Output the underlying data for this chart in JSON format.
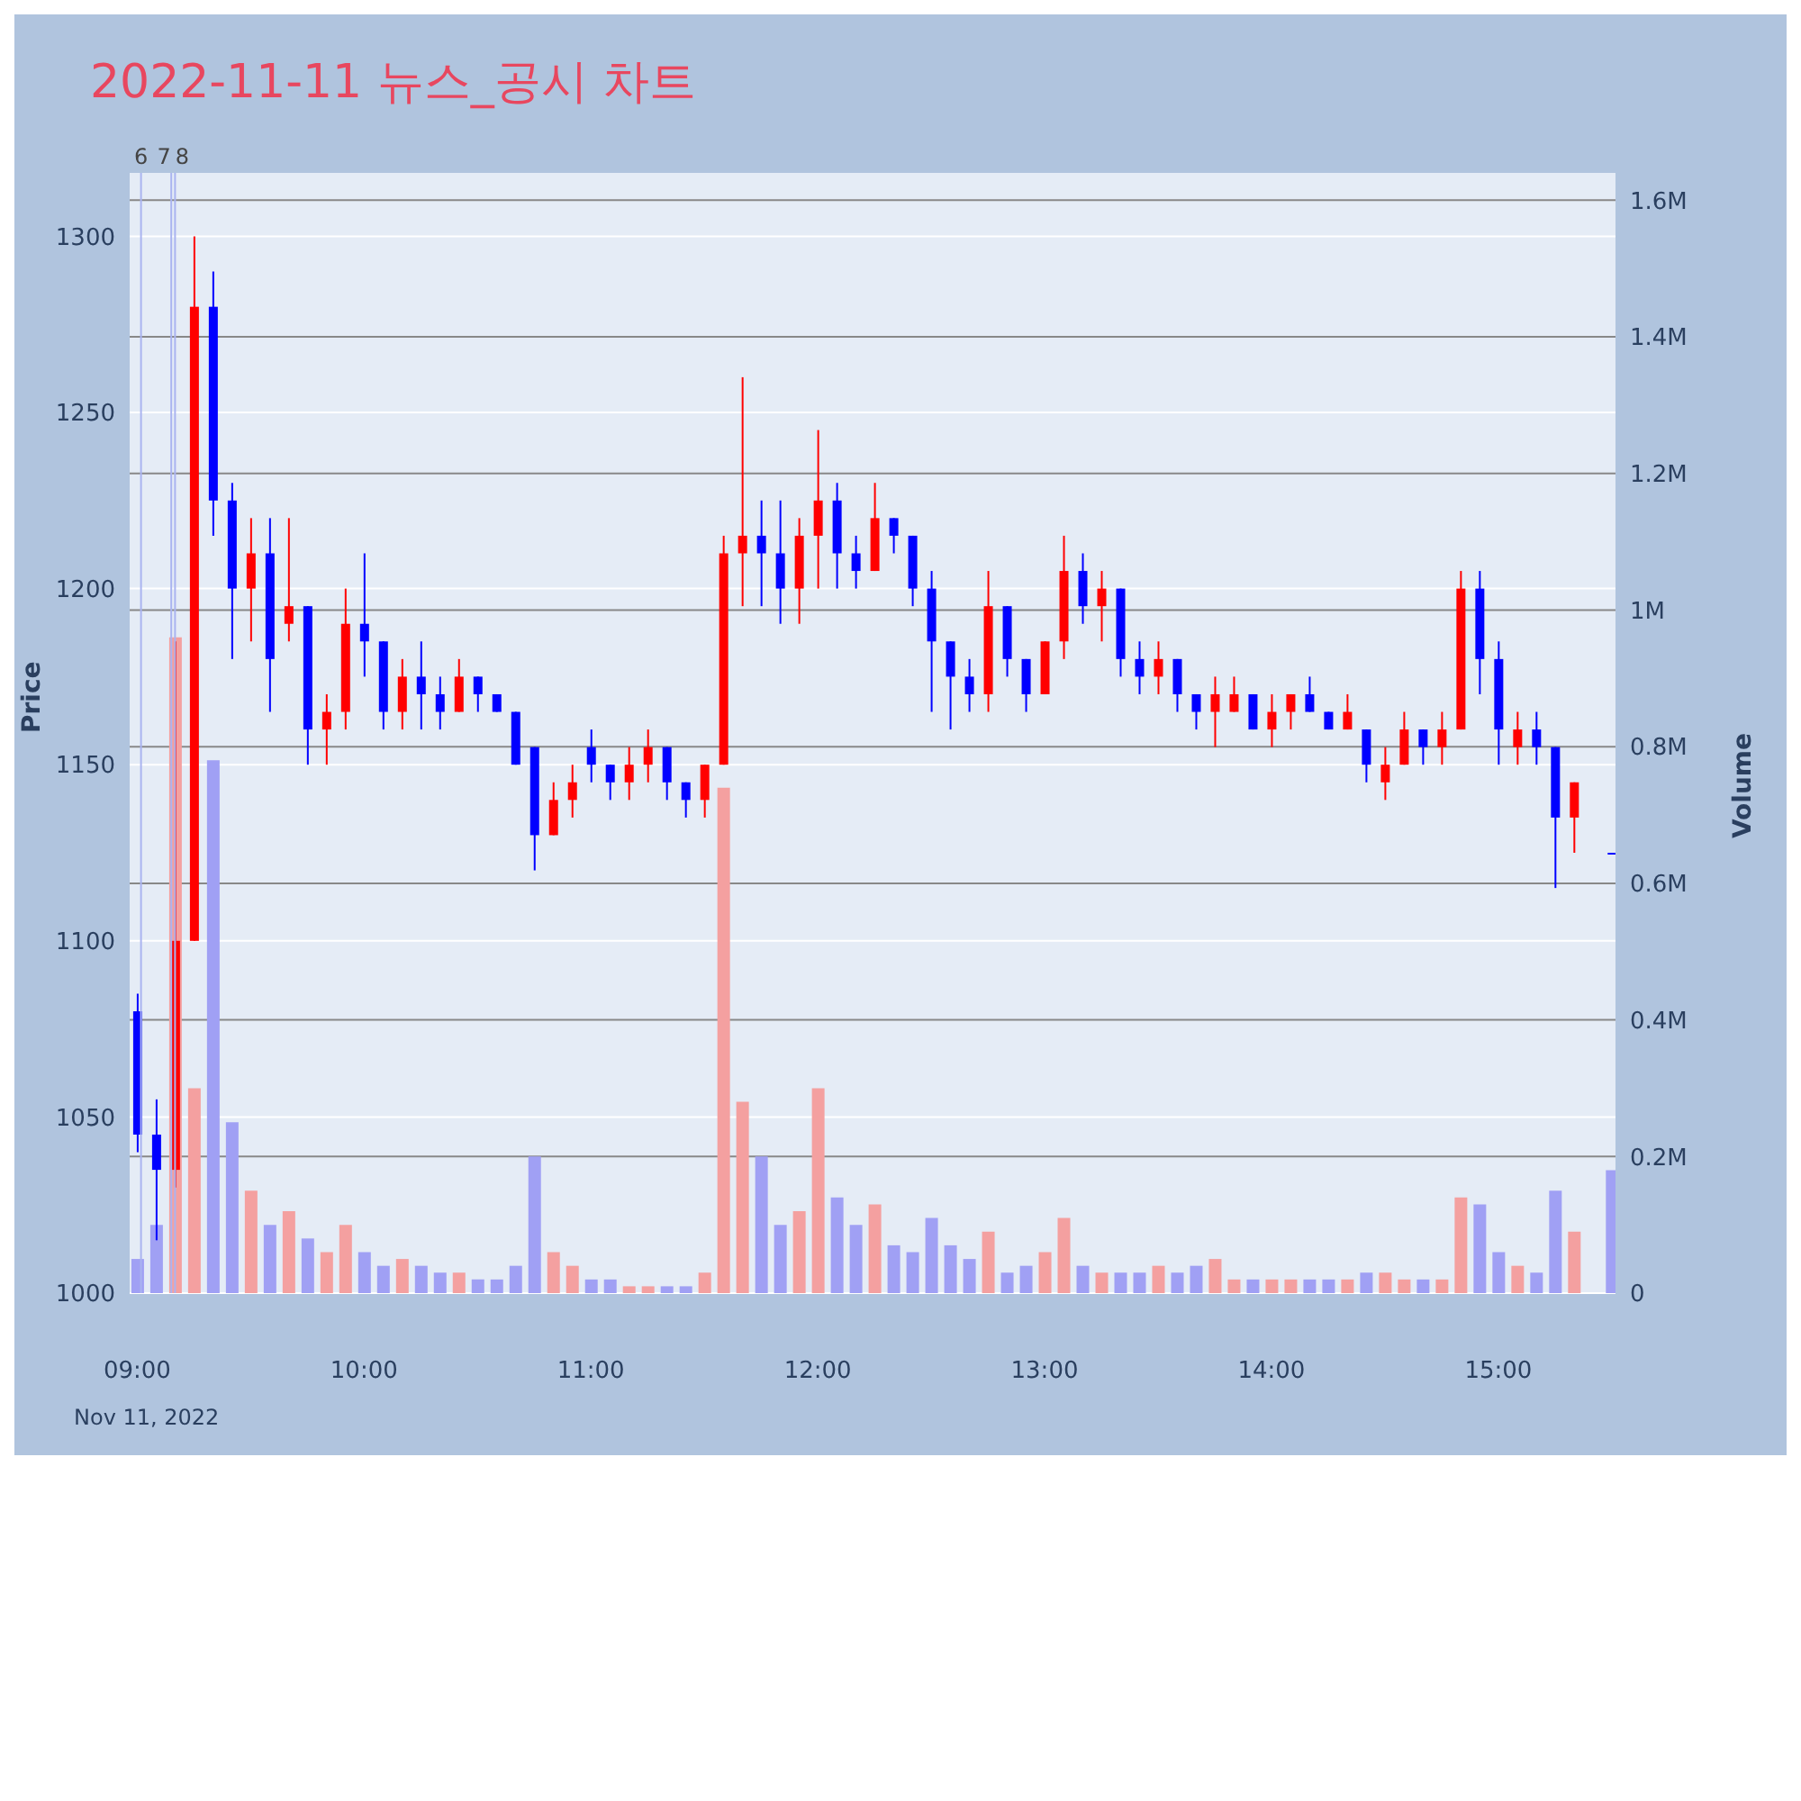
{
  "chart_data": {
    "type": "candlestick",
    "title": "2022-11-11 뉴스_공시 차트",
    "ylabel": "Price",
    "y2label": "Volume",
    "annotations": [
      "Nov 11, 2022"
    ],
    "x": [
      "2022-11-11T09:00",
      "2022-11-11T09:05",
      "2022-11-11T09:10",
      "2022-11-11T09:15",
      "2022-11-11T09:20",
      "2022-11-11T09:25",
      "2022-11-11T09:30",
      "2022-11-11T09:35",
      "2022-11-11T09:40",
      "2022-11-11T09:45",
      "2022-11-11T09:50",
      "2022-11-11T09:55",
      "2022-11-11T10:00",
      "2022-11-11T10:05",
      "2022-11-11T10:10",
      "2022-11-11T10:15",
      "2022-11-11T10:20",
      "2022-11-11T10:25",
      "2022-11-11T10:30",
      "2022-11-11T10:35",
      "2022-11-11T10:40",
      "2022-11-11T10:45",
      "2022-11-11T10:50",
      "2022-11-11T10:55",
      "2022-11-11T11:00",
      "2022-11-11T11:05",
      "2022-11-11T11:10",
      "2022-11-11T11:15",
      "2022-11-11T11:20",
      "2022-11-11T11:25",
      "2022-11-11T11:30",
      "2022-11-11T11:35",
      "2022-11-11T11:40",
      "2022-11-11T11:45",
      "2022-11-11T11:50",
      "2022-11-11T11:55",
      "2022-11-11T12:00",
      "2022-11-11T12:05",
      "2022-11-11T12:10",
      "2022-11-11T12:15",
      "2022-11-11T12:20",
      "2022-11-11T12:25",
      "2022-11-11T12:30",
      "2022-11-11T12:35",
      "2022-11-11T12:40",
      "2022-11-11T12:45",
      "2022-11-11T12:50",
      "2022-11-11T12:55",
      "2022-11-11T13:00",
      "2022-11-11T13:05",
      "2022-11-11T13:10",
      "2022-11-11T13:15",
      "2022-11-11T13:20",
      "2022-11-11T13:25",
      "2022-11-11T13:30",
      "2022-11-11T13:35",
      "2022-11-11T13:40",
      "2022-11-11T13:45",
      "2022-11-11T13:50",
      "2022-11-11T13:55",
      "2022-11-11T14:00",
      "2022-11-11T14:05",
      "2022-11-11T14:10",
      "2022-11-11T14:15",
      "2022-11-11T14:20",
      "2022-11-11T14:25",
      "2022-11-11T14:30",
      "2022-11-11T14:35",
      "2022-11-11T14:40",
      "2022-11-11T14:45",
      "2022-11-11T14:50",
      "2022-11-11T14:55",
      "2022-11-11T15:00",
      "2022-11-11T15:05",
      "2022-11-11T15:10",
      "2022-11-11T15:15",
      "2022-11-11T15:20",
      "2022-11-11T15:30"
    ],
    "series": [
      {
        "type": "candlestick",
        "ohlc": [
          [
            1080,
            1085,
            1040,
            1045
          ],
          [
            1045,
            1055,
            1015,
            1035
          ],
          [
            1035,
            1185,
            1030,
            1100
          ],
          [
            1100,
            1300,
            1100,
            1280
          ],
          [
            1280,
            1290,
            1215,
            1225
          ],
          [
            1225,
            1230,
            1180,
            1200
          ],
          [
            1200,
            1220,
            1185,
            1210
          ],
          [
            1210,
            1220,
            1165,
            1180
          ],
          [
            1190,
            1220,
            1185,
            1195
          ],
          [
            1195,
            1195,
            1150,
            1160
          ],
          [
            1160,
            1170,
            1150,
            1165
          ],
          [
            1165,
            1200,
            1160,
            1190
          ],
          [
            1190,
            1210,
            1175,
            1185
          ],
          [
            1185,
            1185,
            1160,
            1165
          ],
          [
            1165,
            1180,
            1160,
            1175
          ],
          [
            1175,
            1185,
            1160,
            1170
          ],
          [
            1170,
            1175,
            1160,
            1165
          ],
          [
            1165,
            1180,
            1165,
            1175
          ],
          [
            1175,
            1175,
            1165,
            1170
          ],
          [
            1170,
            1170,
            1165,
            1165
          ],
          [
            1165,
            1165,
            1150,
            1150
          ],
          [
            1155,
            1155,
            1120,
            1130
          ],
          [
            1130,
            1145,
            1130,
            1140
          ],
          [
            1140,
            1150,
            1135,
            1145
          ],
          [
            1155,
            1160,
            1145,
            1150
          ],
          [
            1150,
            1150,
            1140,
            1145
          ],
          [
            1145,
            1155,
            1140,
            1150
          ],
          [
            1150,
            1160,
            1145,
            1155
          ],
          [
            1155,
            1155,
            1140,
            1145
          ],
          [
            1145,
            1145,
            1135,
            1140
          ],
          [
            1140,
            1150,
            1135,
            1150
          ],
          [
            1150,
            1215,
            1150,
            1210
          ],
          [
            1210,
            1260,
            1195,
            1215
          ],
          [
            1215,
            1225,
            1195,
            1210
          ],
          [
            1210,
            1225,
            1190,
            1200
          ],
          [
            1200,
            1220,
            1190,
            1215
          ],
          [
            1215,
            1245,
            1200,
            1225
          ],
          [
            1225,
            1230,
            1200,
            1210
          ],
          [
            1210,
            1215,
            1200,
            1205
          ],
          [
            1205,
            1230,
            1205,
            1220
          ],
          [
            1220,
            1220,
            1210,
            1215
          ],
          [
            1215,
            1215,
            1195,
            1200
          ],
          [
            1200,
            1205,
            1165,
            1185
          ],
          [
            1185,
            1185,
            1160,
            1175
          ],
          [
            1175,
            1180,
            1165,
            1170
          ],
          [
            1170,
            1205,
            1165,
            1195
          ],
          [
            1195,
            1195,
            1175,
            1180
          ],
          [
            1180,
            1180,
            1165,
            1170
          ],
          [
            1170,
            1185,
            1170,
            1185
          ],
          [
            1185,
            1215,
            1180,
            1205
          ],
          [
            1205,
            1210,
            1190,
            1195
          ],
          [
            1195,
            1205,
            1185,
            1200
          ],
          [
            1200,
            1200,
            1175,
            1180
          ],
          [
            1180,
            1185,
            1170,
            1175
          ],
          [
            1175,
            1185,
            1170,
            1180
          ],
          [
            1180,
            1180,
            1165,
            1170
          ],
          [
            1170,
            1170,
            1160,
            1165
          ],
          [
            1165,
            1175,
            1155,
            1170
          ],
          [
            1165,
            1175,
            1165,
            1170
          ],
          [
            1170,
            1170,
            1160,
            1160
          ],
          [
            1160,
            1170,
            1155,
            1165
          ],
          [
            1165,
            1170,
            1160,
            1170
          ],
          [
            1170,
            1175,
            1165,
            1165
          ],
          [
            1165,
            1165,
            1160,
            1160
          ],
          [
            1160,
            1170,
            1160,
            1165
          ],
          [
            1160,
            1160,
            1145,
            1150
          ],
          [
            1145,
            1155,
            1140,
            1150
          ],
          [
            1150,
            1165,
            1150,
            1160
          ],
          [
            1160,
            1160,
            1150,
            1155
          ],
          [
            1155,
            1165,
            1150,
            1160
          ],
          [
            1160,
            1205,
            1160,
            1200
          ],
          [
            1200,
            1205,
            1170,
            1180
          ],
          [
            1180,
            1185,
            1150,
            1160
          ],
          [
            1155,
            1165,
            1150,
            1160
          ],
          [
            1160,
            1165,
            1150,
            1155
          ],
          [
            1155,
            1155,
            1115,
            1135
          ],
          [
            1135,
            1145,
            1125,
            1145
          ],
          [
            1125,
            1125,
            1125,
            1125
          ]
        ],
        "colors": [
          "#0000ff",
          "#0000ff",
          "#ff0000",
          "#ff0000",
          "#0000ff",
          "#0000ff",
          "#ff0000",
          "#0000ff",
          "#ff0000",
          "#0000ff",
          "#ff0000",
          "#ff0000",
          "#0000ff",
          "#0000ff",
          "#ff0000",
          "#0000ff",
          "#0000ff",
          "#ff0000",
          "#0000ff",
          "#0000ff",
          "#0000ff",
          "#0000ff",
          "#ff0000",
          "#ff0000",
          "#0000ff",
          "#0000ff",
          "#ff0000",
          "#ff0000",
          "#0000ff",
          "#0000ff",
          "#ff0000",
          "#ff0000",
          "#ff0000",
          "#0000ff",
          "#0000ff",
          "#ff0000",
          "#ff0000",
          "#0000ff",
          "#0000ff",
          "#ff0000",
          "#0000ff",
          "#0000ff",
          "#0000ff",
          "#0000ff",
          "#0000ff",
          "#ff0000",
          "#0000ff",
          "#0000ff",
          "#ff0000",
          "#ff0000",
          "#0000ff",
          "#ff0000",
          "#0000ff",
          "#0000ff",
          "#ff0000",
          "#0000ff",
          "#0000ff",
          "#ff0000",
          "#ff0000",
          "#0000ff",
          "#ff0000",
          "#ff0000",
          "#0000ff",
          "#0000ff",
          "#ff0000",
          "#0000ff",
          "#ff0000",
          "#ff0000",
          "#0000ff",
          "#ff0000",
          "#ff0000",
          "#0000ff",
          "#0000ff",
          "#ff0000",
          "#0000ff",
          "#0000ff",
          "#ff0000",
          "#0000ff"
        ]
      },
      {
        "type": "bar",
        "axis": "y2",
        "values": [
          50000,
          100000,
          960000,
          300000,
          780000,
          250000,
          150000,
          100000,
          120000,
          80000,
          60000,
          100000,
          60000,
          40000,
          50000,
          40000,
          30000,
          30000,
          20000,
          20000,
          40000,
          200000,
          60000,
          40000,
          20000,
          20000,
          10000,
          10000,
          10000,
          10000,
          30000,
          740000,
          280000,
          200000,
          100000,
          120000,
          300000,
          140000,
          100000,
          130000,
          70000,
          60000,
          110000,
          70000,
          50000,
          90000,
          30000,
          40000,
          60000,
          110000,
          40000,
          30000,
          30000,
          30000,
          40000,
          30000,
          40000,
          50000,
          20000,
          20000,
          20000,
          20000,
          20000,
          20000,
          20000,
          30000,
          30000,
          20000,
          20000,
          20000,
          140000,
          130000,
          60000,
          40000,
          30000,
          150000,
          90000,
          180000
        ],
        "colors": [
          "#a0a0f4",
          "#a0a0f4",
          "#f4a0a0",
          "#f4a0a0",
          "#a0a0f4",
          "#a0a0f4",
          "#f4a0a0",
          "#a0a0f4",
          "#f4a0a0",
          "#a0a0f4",
          "#f4a0a0",
          "#f4a0a0",
          "#a0a0f4",
          "#a0a0f4",
          "#f4a0a0",
          "#a0a0f4",
          "#a0a0f4",
          "#f4a0a0",
          "#a0a0f4",
          "#a0a0f4",
          "#a0a0f4",
          "#a0a0f4",
          "#f4a0a0",
          "#f4a0a0",
          "#a0a0f4",
          "#a0a0f4",
          "#f4a0a0",
          "#f4a0a0",
          "#a0a0f4",
          "#a0a0f4",
          "#f4a0a0",
          "#f4a0a0",
          "#f4a0a0",
          "#a0a0f4",
          "#a0a0f4",
          "#f4a0a0",
          "#f4a0a0",
          "#a0a0f4",
          "#a0a0f4",
          "#f4a0a0",
          "#a0a0f4",
          "#a0a0f4",
          "#a0a0f4",
          "#a0a0f4",
          "#a0a0f4",
          "#f4a0a0",
          "#a0a0f4",
          "#a0a0f4",
          "#f4a0a0",
          "#f4a0a0",
          "#a0a0f4",
          "#f4a0a0",
          "#a0a0f4",
          "#a0a0f4",
          "#f4a0a0",
          "#a0a0f4",
          "#a0a0f4",
          "#f4a0a0",
          "#f4a0a0",
          "#a0a0f4",
          "#f4a0a0",
          "#f4a0a0",
          "#a0a0f4",
          "#a0a0f4",
          "#f4a0a0",
          "#a0a0f4",
          "#f4a0a0",
          "#f4a0a0",
          "#a0a0f4",
          "#f4a0a0",
          "#f4a0a0",
          "#a0a0f4",
          "#a0a0f4",
          "#f4a0a0",
          "#a0a0f4",
          "#a0a0f4",
          "#f4a0a0",
          "#a0a0f4"
        ]
      }
    ],
    "xlim": [
      "2022-11-11T08:58",
      "2022-11-11T15:31"
    ],
    "xticks": [
      {
        "value": "2022-11-11T09:00",
        "label": "09:00"
      },
      {
        "value": "2022-11-11T10:00",
        "label": "10:00"
      },
      {
        "value": "2022-11-11T11:00",
        "label": "11:00"
      },
      {
        "value": "2022-11-11T12:00",
        "label": "12:00"
      },
      {
        "value": "2022-11-11T13:00",
        "label": "13:00"
      },
      {
        "value": "2022-11-11T14:00",
        "label": "14:00"
      },
      {
        "value": "2022-11-11T15:00",
        "label": "15:00"
      }
    ],
    "ylim": [
      1000,
      1318
    ],
    "yticks": [
      1000,
      1050,
      1100,
      1150,
      1200,
      1250,
      1300
    ],
    "y2lim": [
      0,
      1640000
    ],
    "y2ticks": [
      0,
      {
        "value": 200000,
        "label": "0.2M"
      },
      {
        "value": 400000,
        "label": "0.4M"
      },
      {
        "value": 600000,
        "label": "0.6M"
      },
      {
        "value": 800000,
        "label": "0.8M"
      },
      {
        "value": 1000000,
        "label": "1M"
      },
      {
        "value": 1200000,
        "label": "1.2M"
      },
      {
        "value": 1400000,
        "label": "1.4M"
      },
      {
        "value": 1600000,
        "label": "1.6M"
      }
    ],
    "ref_lines": [
      {
        "axis": "x",
        "value": "2022-11-11T09:01",
        "label": "6",
        "color": "#aab4f0"
      },
      {
        "axis": "x",
        "value": "2022-11-11T09:09",
        "label": "7",
        "color": "#aab4f0"
      },
      {
        "axis": "x",
        "value": "2022-11-11T09:10",
        "label": "8",
        "color": "#aab4f0"
      }
    ],
    "grid": true
  }
}
